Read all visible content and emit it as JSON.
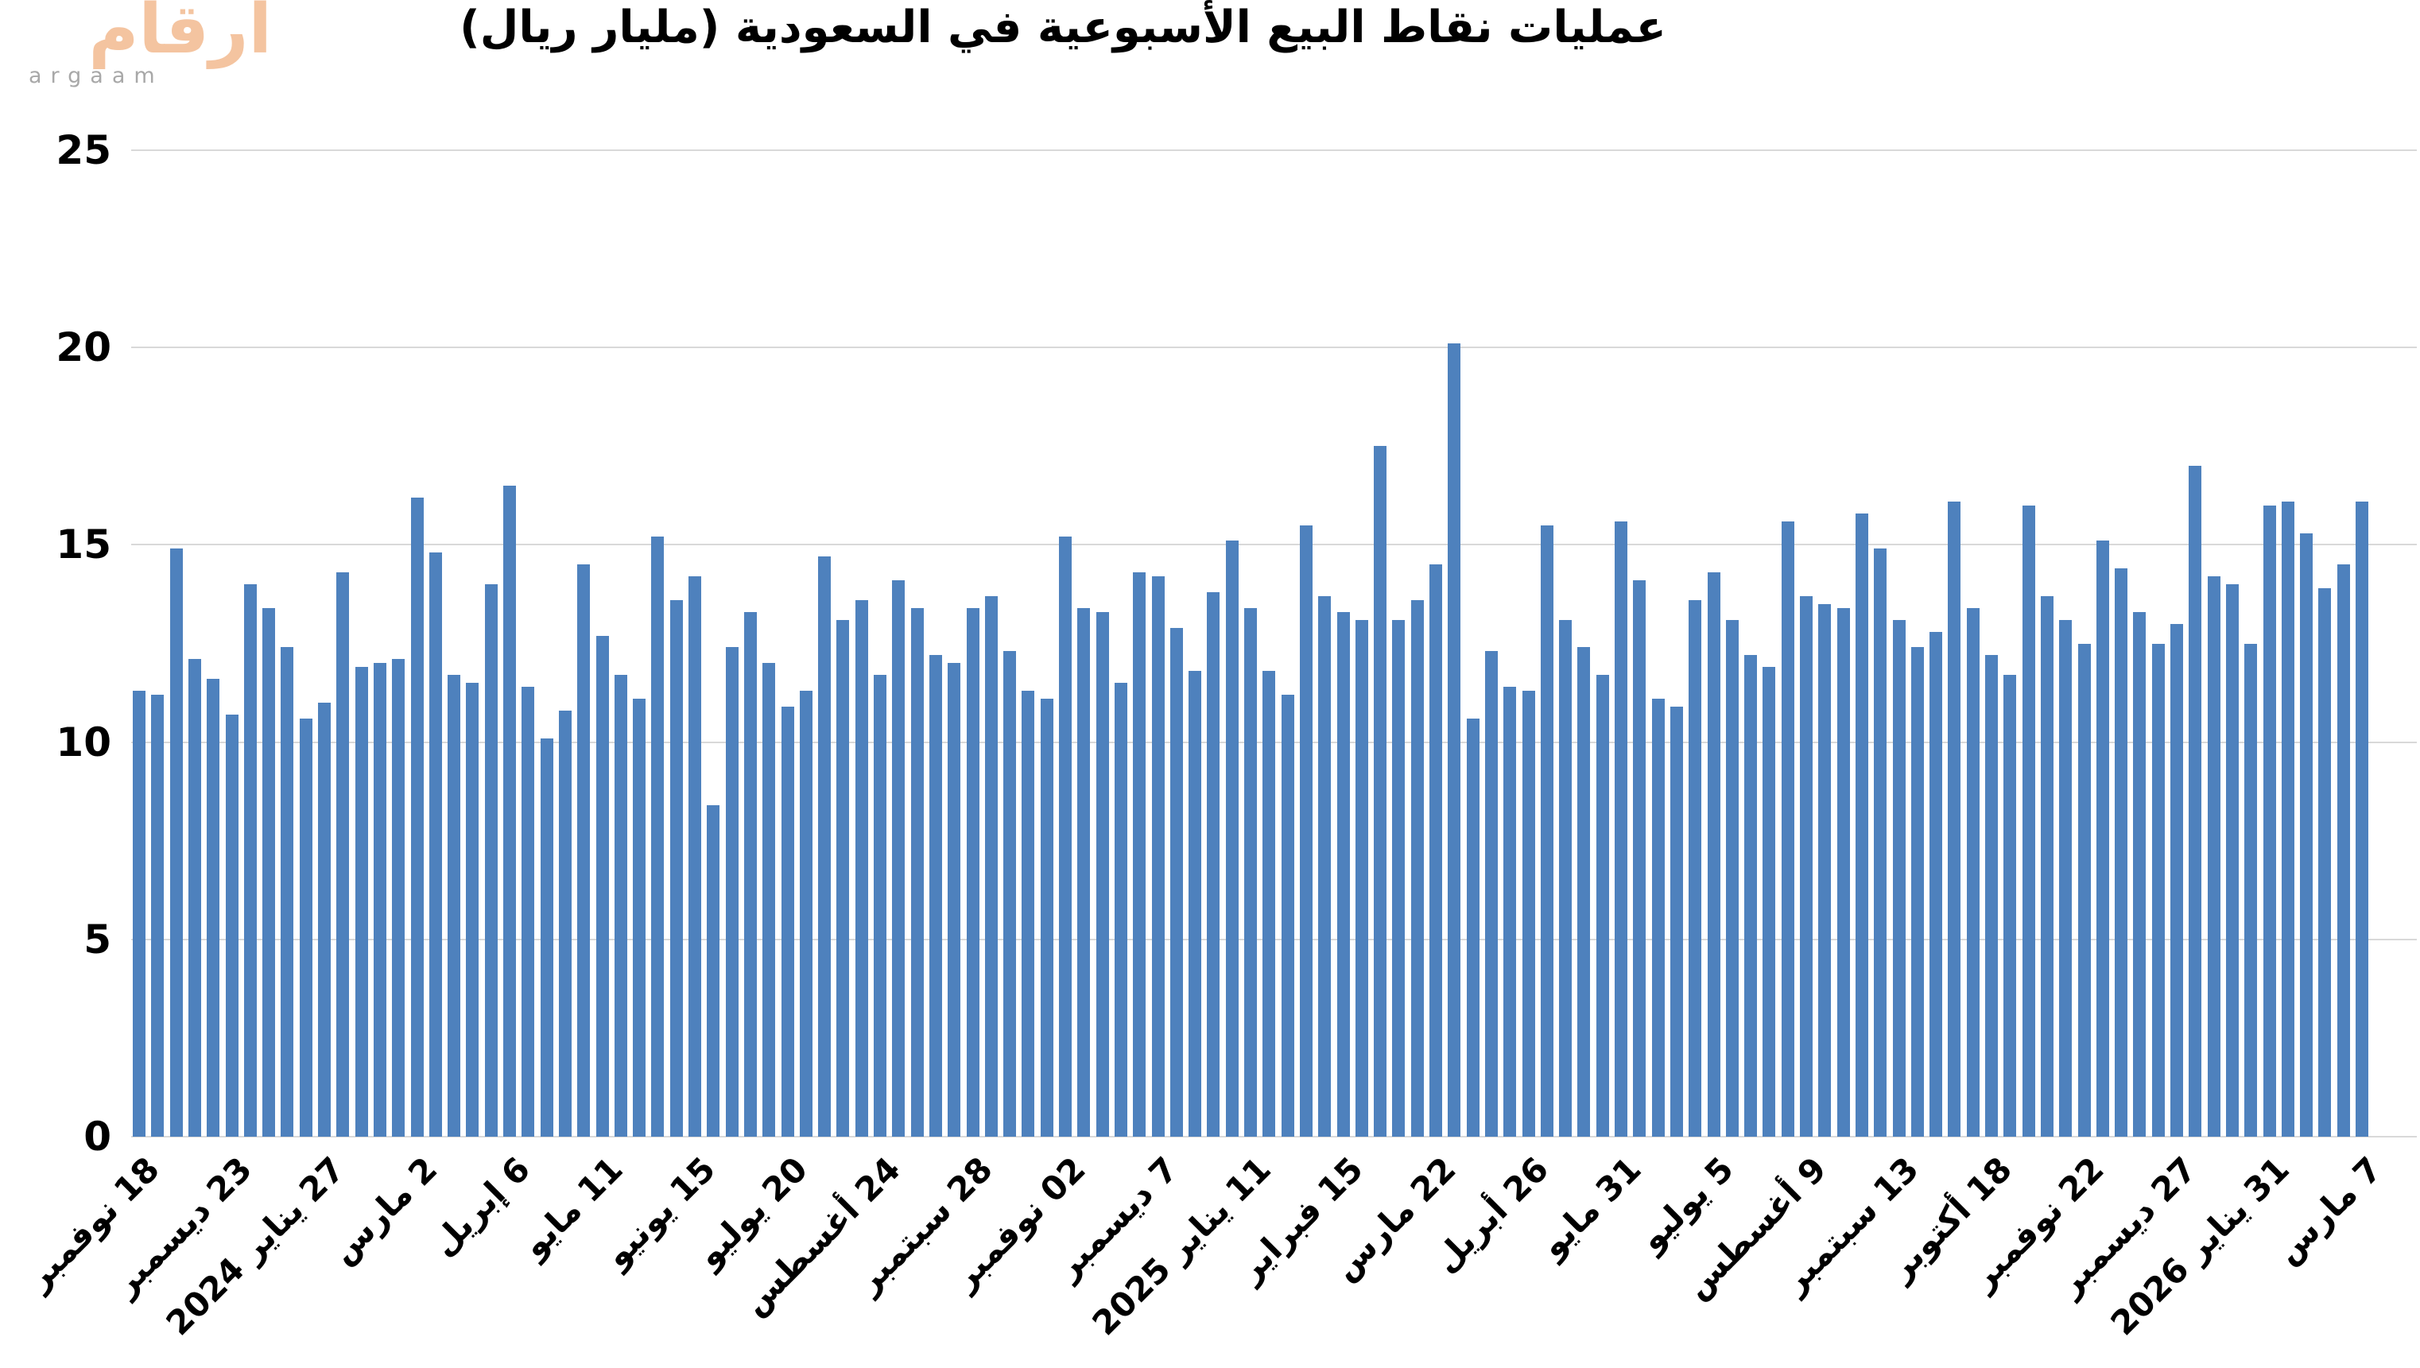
{
  "logo": {
    "arabic": "أرقام",
    "latin": "argaam"
  },
  "header": {
    "title": "عمليات نقاط البيع الأسبوعية في السعودية (مليار ريال)"
  },
  "chart_data": {
    "type": "bar",
    "title": "عمليات نقاط البيع الأسبوعية في السعودية (مليار ريال)",
    "xlabel": "",
    "ylabel": "",
    "ylim": [
      0,
      25
    ],
    "y_ticks": [
      0,
      5,
      10,
      15,
      20,
      25
    ],
    "grid": "horizontal",
    "legend": "none",
    "bar_color": "#4E81BD",
    "gridline_color": "#D9D9D9",
    "x_tick_every": 5,
    "x_tick_labels": [
      "18 نوفمبر",
      "23 ديسمبر",
      "27 يناير 2024",
      "2 مارس",
      "6 إبريل",
      "11 مايو",
      "15 يونيو",
      "20 يوليو",
      "24 أغسطس",
      "28 سبتمبر",
      "02 نوفمبر",
      "7 ديسمبر",
      "11 يناير 2025",
      "15 فبراير",
      "22 مارس",
      "26 أبريل",
      "31 مايو",
      "5 يوليو",
      "9 أغسطس",
      "13 سبتمبر",
      "18 أكتوبر",
      "22 نوفمبر",
      "27 ديسمبر",
      "31 يناير 2026",
      "7 مارس"
    ],
    "values": [
      11.3,
      11.2,
      14.9,
      12.1,
      11.6,
      10.7,
      14.0,
      13.4,
      12.4,
      10.6,
      11.0,
      14.3,
      11.9,
      12.0,
      12.1,
      16.2,
      14.8,
      11.7,
      11.5,
      14.0,
      16.5,
      11.4,
      10.1,
      10.8,
      14.5,
      12.7,
      11.7,
      11.1,
      15.2,
      13.6,
      14.2,
      8.4,
      12.4,
      13.3,
      12.0,
      10.9,
      11.3,
      14.7,
      13.1,
      13.6,
      11.7,
      14.1,
      13.4,
      12.2,
      12.0,
      13.4,
      13.7,
      12.3,
      11.3,
      11.1,
      15.2,
      13.4,
      13.3,
      11.5,
      14.3,
      14.2,
      12.9,
      11.8,
      13.8,
      15.1,
      13.4,
      11.8,
      11.2,
      15.5,
      13.7,
      13.3,
      13.1,
      17.5,
      13.1,
      13.6,
      14.5,
      20.1,
      10.6,
      12.3,
      11.4,
      11.3,
      15.5,
      13.1,
      12.4,
      11.7,
      15.6,
      14.1,
      11.1,
      10.9,
      13.6,
      14.3,
      13.1,
      12.2,
      11.9,
      15.6,
      13.7,
      13.5,
      13.4,
      15.8,
      14.9,
      13.1,
      12.4,
      12.8,
      16.1,
      13.4,
      12.2,
      11.7,
      16.0,
      13.7,
      13.1,
      12.5,
      15.1,
      14.4,
      13.3,
      12.5,
      13.0,
      17.0,
      14.2,
      14.0,
      12.5,
      16.0,
      16.1,
      15.3,
      13.9,
      14.5,
      16.1
    ]
  },
  "colors": {
    "logo_peach": "#F4C4A0",
    "logo_gray": "#A8A8A8",
    "bar_blue": "#4E81BD",
    "grid_gray": "#D9D9D9",
    "text_black": "#000000"
  }
}
